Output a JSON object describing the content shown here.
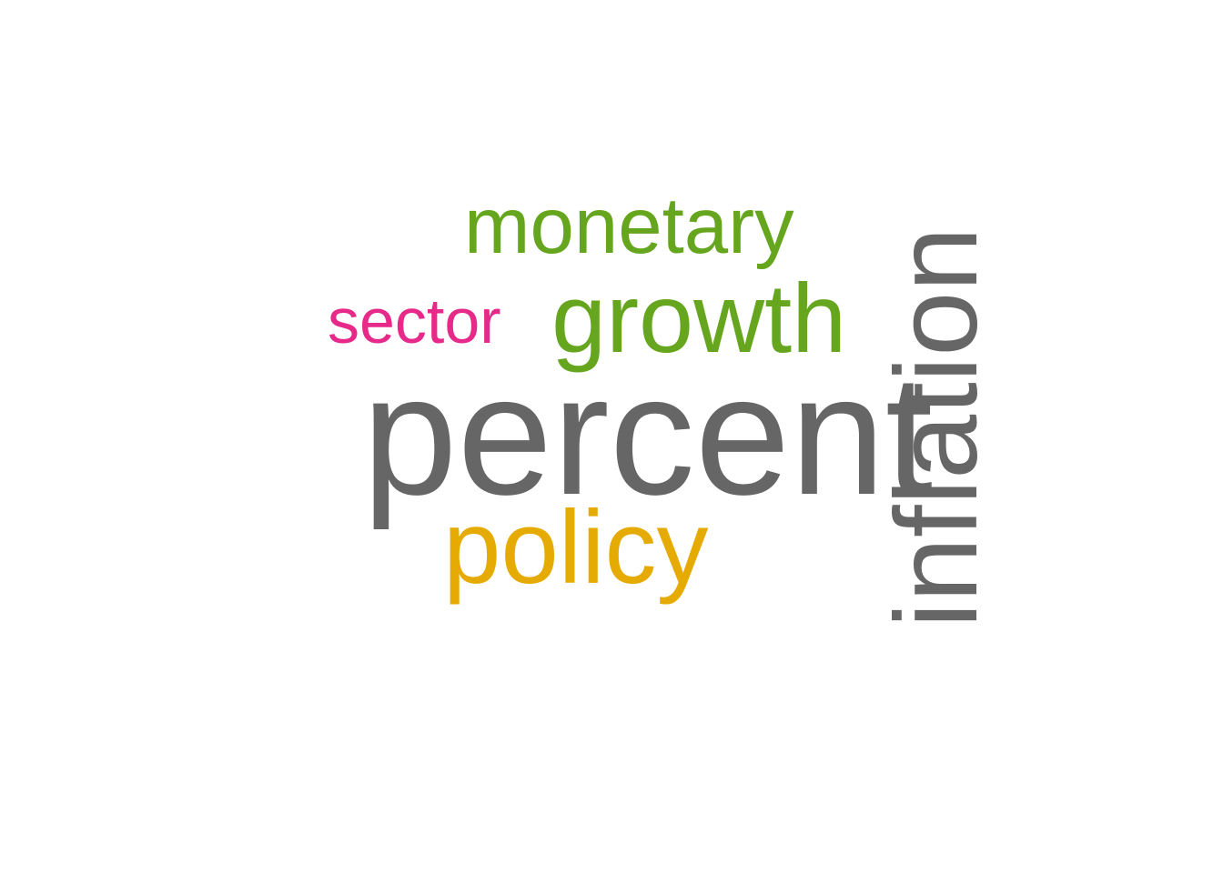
{
  "words": [
    {
      "text": "monetary",
      "color": "#66a61e"
    },
    {
      "text": "sector",
      "color": "#e7298a"
    },
    {
      "text": "growth",
      "color": "#66a61e"
    },
    {
      "text": "percent",
      "color": "#666666"
    },
    {
      "text": "policy",
      "color": "#e6ab02"
    },
    {
      "text": "inflation",
      "color": "#666666"
    }
  ]
}
